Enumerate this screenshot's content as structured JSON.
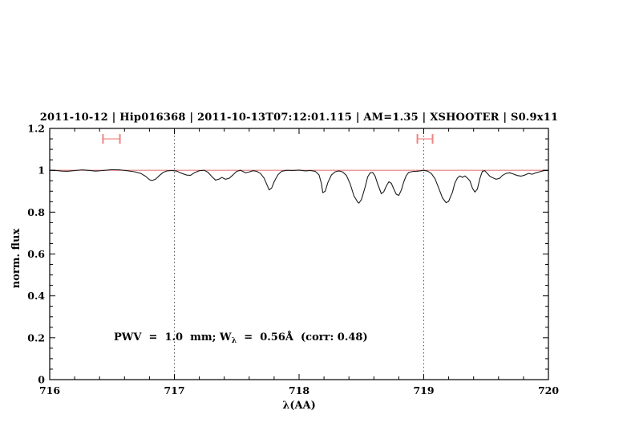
{
  "title": {
    "text": "2011-10-12 | Hip016368 | 2011-10-13T07:12:01.115 | AM=1.35 | XSHOOTER | S0.9x11",
    "color": "#0000cd"
  },
  "annotation": {
    "prefix": "PWV  =  1.0  mm; W",
    "sub": "λ",
    "suffix": "  =  0.56Å  (corr: 0.48)",
    "color": "#0000cd",
    "values": {
      "pwv_mm": "1.0",
      "equivalent_width_angstrom": "0.56",
      "corr": "0.48"
    }
  },
  "colors": {
    "background": "#ffffff",
    "frame": "#000000",
    "spectrum": "#1c1c1c"
  },
  "chart_data": {
    "type": "line",
    "title": "2011-10-12 | Hip016368 | 2011-10-13T07:12:01.115 | AM=1.35 | XSHOOTER | S0.9x11",
    "xlabel": "λ(AA)",
    "ylabel": "norm. flux",
    "xlim": [
      716,
      720
    ],
    "ylim": [
      0,
      1.2
    ],
    "grid": false,
    "x_tick_labels": [
      "716",
      "717",
      "718",
      "719",
      "720"
    ],
    "x_major_step": 1,
    "x_minor_step": 0.2,
    "y_tick_labels": [
      "0",
      "0.2",
      "0.4",
      "0.6",
      "0.8",
      "1",
      "1.2"
    ],
    "y_major_step": 0.2,
    "y_minor_step": 0.05,
    "vlines": {
      "x": [
        717,
        719
      ],
      "style": "dotted",
      "color": "#555555"
    },
    "continuum_line": {
      "y": 1.0,
      "color": "#e87a7a"
    },
    "telluric_markers": {
      "cap_color": "#ee8585",
      "bar_color": "#f4a6a6",
      "y": 1.15,
      "cap_half_height": 0.023,
      "items": [
        {
          "x_center": 716.495,
          "x_half_width": 0.068
        },
        {
          "x_center": 719.01,
          "x_half_width": 0.061
        }
      ]
    },
    "series": [
      {
        "name": "observed spectrum",
        "color": "#1c1c1c",
        "points": [
          [
            716.0,
            1.0
          ],
          [
            716.05,
            0.999
          ],
          [
            716.1,
            0.996
          ],
          [
            716.14,
            0.995
          ],
          [
            716.19,
            0.998
          ],
          [
            716.26,
            1.002
          ],
          [
            716.32,
            0.999
          ],
          [
            716.37,
            0.996
          ],
          [
            716.43,
            0.999
          ],
          [
            716.5,
            1.003
          ],
          [
            716.56,
            1.002
          ],
          [
            716.62,
            0.998
          ],
          [
            716.68,
            0.993
          ],
          [
            716.73,
            0.985
          ],
          [
            716.77,
            0.971
          ],
          [
            716.8,
            0.955
          ],
          [
            716.82,
            0.951
          ],
          [
            716.85,
            0.958
          ],
          [
            716.88,
            0.975
          ],
          [
            716.91,
            0.99
          ],
          [
            716.94,
            0.997
          ],
          [
            716.98,
            0.999
          ],
          [
            717.02,
            0.996
          ],
          [
            717.06,
            0.985
          ],
          [
            717.1,
            0.977
          ],
          [
            717.13,
            0.976
          ],
          [
            717.16,
            0.988
          ],
          [
            717.2,
            0.998
          ],
          [
            717.24,
            1.0
          ],
          [
            717.27,
            0.99
          ],
          [
            717.3,
            0.97
          ],
          [
            717.33,
            0.953
          ],
          [
            717.36,
            0.958
          ],
          [
            717.38,
            0.966
          ],
          [
            717.41,
            0.957
          ],
          [
            717.44,
            0.962
          ],
          [
            717.47,
            0.978
          ],
          [
            717.5,
            0.995
          ],
          [
            717.53,
            1.0
          ],
          [
            717.57,
            0.988
          ],
          [
            717.6,
            0.992
          ],
          [
            717.63,
            0.998
          ],
          [
            717.66,
            0.995
          ],
          [
            717.69,
            0.985
          ],
          [
            717.72,
            0.962
          ],
          [
            717.75,
            0.92
          ],
          [
            717.76,
            0.906
          ],
          [
            717.78,
            0.915
          ],
          [
            717.8,
            0.945
          ],
          [
            717.83,
            0.978
          ],
          [
            717.86,
            0.995
          ],
          [
            717.9,
            1.0
          ],
          [
            717.95,
            0.999
          ],
          [
            718.0,
            1.001
          ],
          [
            718.05,
            0.997
          ],
          [
            718.09,
            0.999
          ],
          [
            718.13,
            0.995
          ],
          [
            718.16,
            0.978
          ],
          [
            718.18,
            0.935
          ],
          [
            718.19,
            0.893
          ],
          [
            718.21,
            0.9
          ],
          [
            718.23,
            0.94
          ],
          [
            718.26,
            0.978
          ],
          [
            718.29,
            0.993
          ],
          [
            718.32,
            0.997
          ],
          [
            718.35,
            0.992
          ],
          [
            718.38,
            0.975
          ],
          [
            718.41,
            0.935
          ],
          [
            718.44,
            0.878
          ],
          [
            718.47,
            0.848
          ],
          [
            718.48,
            0.843
          ],
          [
            718.5,
            0.86
          ],
          [
            718.53,
            0.92
          ],
          [
            718.55,
            0.968
          ],
          [
            718.57,
            0.988
          ],
          [
            718.59,
            0.99
          ],
          [
            718.61,
            0.972
          ],
          [
            718.63,
            0.935
          ],
          [
            718.66,
            0.888
          ],
          [
            718.68,
            0.898
          ],
          [
            718.7,
            0.925
          ],
          [
            718.72,
            0.945
          ],
          [
            718.74,
            0.938
          ],
          [
            718.76,
            0.91
          ],
          [
            718.78,
            0.885
          ],
          [
            718.8,
            0.88
          ],
          [
            718.82,
            0.905
          ],
          [
            718.84,
            0.945
          ],
          [
            718.86,
            0.975
          ],
          [
            718.88,
            0.99
          ],
          [
            718.91,
            0.994
          ],
          [
            718.94,
            0.995
          ],
          [
            718.97,
            0.997
          ],
          [
            719.0,
            1.0
          ],
          [
            719.03,
            0.996
          ],
          [
            719.06,
            0.985
          ],
          [
            719.09,
            0.96
          ],
          [
            719.12,
            0.915
          ],
          [
            719.15,
            0.868
          ],
          [
            719.18,
            0.845
          ],
          [
            719.2,
            0.852
          ],
          [
            719.23,
            0.895
          ],
          [
            719.25,
            0.94
          ],
          [
            719.27,
            0.963
          ],
          [
            719.29,
            0.973
          ],
          [
            719.31,
            0.966
          ],
          [
            719.33,
            0.973
          ],
          [
            719.35,
            0.963
          ],
          [
            719.37,
            0.95
          ],
          [
            719.39,
            0.915
          ],
          [
            719.41,
            0.896
          ],
          [
            719.43,
            0.91
          ],
          [
            719.45,
            0.96
          ],
          [
            719.47,
            0.995
          ],
          [
            719.49,
            0.998
          ],
          [
            719.51,
            0.985
          ],
          [
            719.53,
            0.972
          ],
          [
            719.55,
            0.965
          ],
          [
            719.58,
            0.957
          ],
          [
            719.61,
            0.962
          ],
          [
            719.63,
            0.975
          ],
          [
            719.66,
            0.985
          ],
          [
            719.69,
            0.988
          ],
          [
            719.72,
            0.982
          ],
          [
            719.75,
            0.975
          ],
          [
            719.78,
            0.972
          ],
          [
            719.81,
            0.977
          ],
          [
            719.84,
            0.985
          ],
          [
            719.87,
            0.981
          ],
          [
            719.9,
            0.988
          ],
          [
            719.93,
            0.993
          ],
          [
            719.96,
            0.998
          ],
          [
            720.0,
            1.0
          ]
        ]
      }
    ]
  }
}
